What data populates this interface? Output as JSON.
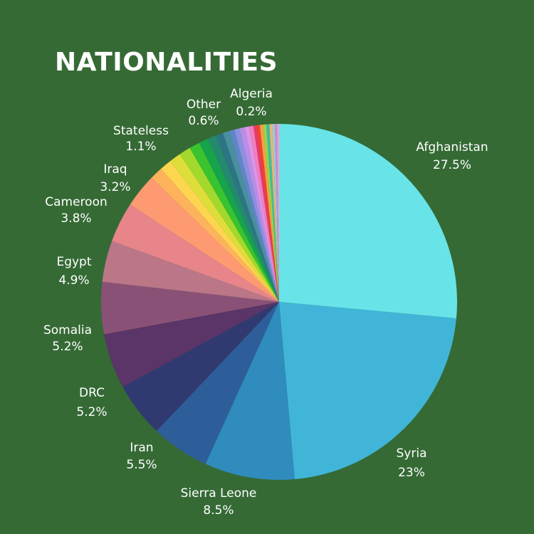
{
  "chart_data": {
    "type": "pie",
    "title": "NATIONALITIES",
    "slices": [
      {
        "label": "Afghanistan",
        "value": 27.5,
        "display": "27.5%",
        "color": "#68e4e8",
        "labeled": true
      },
      {
        "label": "Syria",
        "value": 23,
        "display": "23%",
        "color": "#41b5d8",
        "labeled": true
      },
      {
        "label": "Sierra Leone",
        "value": 8.5,
        "display": "8.5%",
        "color": "#2f8cbd",
        "labeled": true
      },
      {
        "label": "Iran",
        "value": 5.5,
        "display": "5.5%",
        "color": "#2d5e9a",
        "labeled": true
      },
      {
        "label": "DRC",
        "value": 5.2,
        "display": "5.2%",
        "color": "#313a70",
        "labeled": true
      },
      {
        "label": "Somalia",
        "value": 5.2,
        "display": "5.2%",
        "color": "#5b3468",
        "labeled": true
      },
      {
        "label": "Egypt",
        "value": 4.9,
        "display": "4.9%",
        "color": "#8a5176",
        "labeled": true
      },
      {
        "label": "",
        "value": 3.9,
        "display": "",
        "color": "#bb7688",
        "labeled": false
      },
      {
        "label": "Cameroon",
        "value": 3.8,
        "display": "3.8%",
        "color": "#e7858a",
        "labeled": true
      },
      {
        "label": "Iraq",
        "value": 3.2,
        "display": "3.2%",
        "color": "#fe9a72",
        "labeled": true
      },
      {
        "label": "",
        "value": 1.2,
        "display": "",
        "color": "#fdb35c",
        "labeled": false
      },
      {
        "label": "",
        "value": 1.1,
        "display": "",
        "color": "#fdd54f",
        "labeled": false
      },
      {
        "label": "",
        "value": 1.1,
        "display": "",
        "color": "#dede3a",
        "labeled": false
      },
      {
        "label": "Stateless",
        "value": 1.1,
        "display": "1.1%",
        "color": "#a3d92c",
        "labeled": true
      },
      {
        "label": "",
        "value": 1.0,
        "display": "",
        "color": "#38c32f",
        "labeled": false
      },
      {
        "label": "",
        "value": 0.9,
        "display": "",
        "color": "#16a44a",
        "labeled": false
      },
      {
        "label": "",
        "value": 0.8,
        "display": "",
        "color": "#238a6e",
        "labeled": false
      },
      {
        "label": "",
        "value": 0.7,
        "display": "",
        "color": "#2d7584",
        "labeled": false
      },
      {
        "label": "Other",
        "value": 0.6,
        "display": "0.6%",
        "color": "#4a8fa0",
        "labeled": true
      },
      {
        "label": "",
        "value": 0.5,
        "display": "",
        "color": "#5f86c6",
        "labeled": false
      },
      {
        "label": "",
        "value": 0.5,
        "display": "",
        "color": "#8d8fe0",
        "labeled": false
      },
      {
        "label": "",
        "value": 0.5,
        "display": "",
        "color": "#b88ee6",
        "labeled": false
      },
      {
        "label": "",
        "value": 0.4,
        "display": "",
        "color": "#e093ea",
        "labeled": false
      },
      {
        "label": "",
        "value": 0.4,
        "display": "",
        "color": "#f07fbf",
        "labeled": false
      },
      {
        "label": "",
        "value": 0.3,
        "display": "",
        "color": "#e83a6b",
        "labeled": false
      },
      {
        "label": "",
        "value": 0.3,
        "display": "",
        "color": "#f0442a",
        "labeled": false
      },
      {
        "label": "",
        "value": 0.3,
        "display": "",
        "color": "#f5a04a",
        "labeled": false
      },
      {
        "label": "",
        "value": 0.3,
        "display": "",
        "color": "#9ed24b",
        "labeled": false
      },
      {
        "label": "",
        "value": 0.3,
        "display": "",
        "color": "#3fbf9a",
        "labeled": false
      },
      {
        "label": "",
        "value": 0.3,
        "display": "",
        "color": "#e8b37a",
        "labeled": false
      },
      {
        "label": "",
        "value": 0.2,
        "display": "",
        "color": "#8cd4e0",
        "labeled": false
      },
      {
        "label": "",
        "value": 0.2,
        "display": "",
        "color": "#c98ad6",
        "labeled": false
      },
      {
        "label": "Algeria",
        "value": 0.2,
        "display": "0.2%",
        "color": "#f39ad0",
        "labeled": true
      }
    ]
  }
}
